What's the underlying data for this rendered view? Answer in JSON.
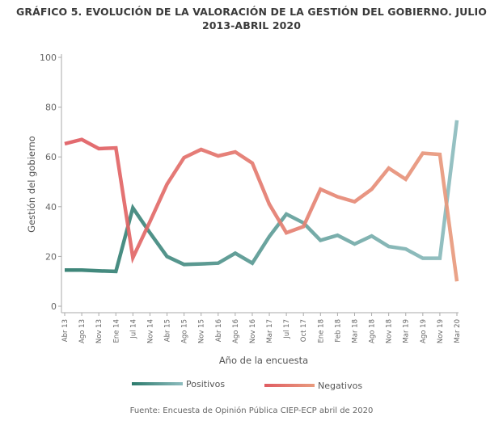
{
  "chart_data": {
    "type": "line",
    "title": "GRÁFICO 5. EVOLUCIÓN DE LA VALORACIÓN DE LA GESTIÓN DEL GOBIERNO. JULIO",
    "title_line2": "2013-ABRIL 2020",
    "xlabel": "Año de la encuesta",
    "ylabel": "Gestión del gobierno",
    "ylim": [
      0,
      100
    ],
    "yticks": [
      0,
      20,
      40,
      60,
      80,
      100
    ],
    "grid": false,
    "legend_position": "bottom",
    "categories": [
      "Abr 13",
      "Ago 13",
      "Nov 13",
      "Ene 14",
      "Jul 14",
      "Nov 14",
      "Abr 15",
      "Ago 15",
      "Nov 15",
      "Abr 16",
      "Ago 16",
      "Nov 16",
      "Mar 17",
      "Jul 17",
      "Oct 17",
      "Ene 18",
      "Feb 18",
      "Mar 18",
      "Ago 18",
      "Nov 18",
      "Mar 19",
      "Ago 19",
      "Nov 19",
      "Mar 20"
    ],
    "series": [
      {
        "name": "Positivos",
        "color_start": "#2b7a6c",
        "color_end": "#8dbcbe",
        "values": [
          14.5,
          14.5,
          14.2,
          14,
          39.5,
          29.5,
          20,
          16.8,
          17,
          17.3,
          21.3,
          17.3,
          28,
          37,
          33.5,
          26.5,
          28.5,
          25,
          28.2,
          24,
          23,
          19.3,
          19.3,
          74.7
        ]
      },
      {
        "name": "Negativos",
        "color_start": "#e05c62",
        "color_end": "#e89b7e",
        "values": [
          65.3,
          67,
          63.3,
          63.6,
          19.5,
          34,
          49,
          59.7,
          63,
          60.4,
          62,
          57.5,
          41,
          29.5,
          32,
          47,
          44,
          42,
          47,
          55.5,
          51,
          61.5,
          61,
          10
        ]
      }
    ],
    "source": "Fuente: Encuesta de Opinión Pública CIEP-ECP abril de 2020"
  }
}
